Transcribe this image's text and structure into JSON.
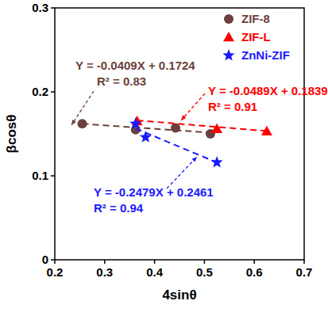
{
  "chart_data": {
    "type": "scatter",
    "x_label": "4sinθ",
    "y_label": "βcosθ",
    "xlim": [
      0.2,
      0.7
    ],
    "xticks": [
      0.2,
      0.3,
      0.4,
      0.5,
      0.6,
      0.7
    ],
    "ylim": [
      0,
      0.3
    ],
    "yticks": [
      0,
      0.1,
      0.2,
      0.3
    ],
    "legend": "upper right",
    "grid": false,
    "series": [
      {
        "name": "ZIF-8",
        "color": "#6b3f3c",
        "marker": "circle",
        "line_style": "dashed",
        "x": [
          0.255,
          0.362,
          0.442,
          0.512
        ],
        "values": [
          0.162,
          0.155,
          0.157,
          0.15
        ],
        "trendline": {
          "slope": -0.0409,
          "intercept": 0.1724
        },
        "equation": "Y = -0.0409X + 0.1724",
        "r2_label": "R² = 0.83"
      },
      {
        "name": "ZIF-L",
        "color": "#ff0000",
        "marker": "triangle",
        "line_style": "dashed",
        "x": [
          0.365,
          0.525,
          0.625
        ],
        "values": [
          0.165,
          0.156,
          0.153
        ],
        "trendline": {
          "slope": -0.0489,
          "intercept": 0.1839
        },
        "equation": "Y = -0.0489X + 0.1839",
        "r2_label": "R² = 0.91"
      },
      {
        "name": "ZnNi-ZIF",
        "color": "#1a1aff",
        "marker": "star",
        "line_style": "dashed",
        "x": [
          0.362,
          0.382,
          0.525
        ],
        "values": [
          0.162,
          0.146,
          0.116
        ],
        "trendline": {
          "slope": -0.2479,
          "intercept": 0.2461
        },
        "equation": "Y = -0.2479X + 0.2461",
        "r2_label": "R² = 0.94"
      }
    ]
  }
}
